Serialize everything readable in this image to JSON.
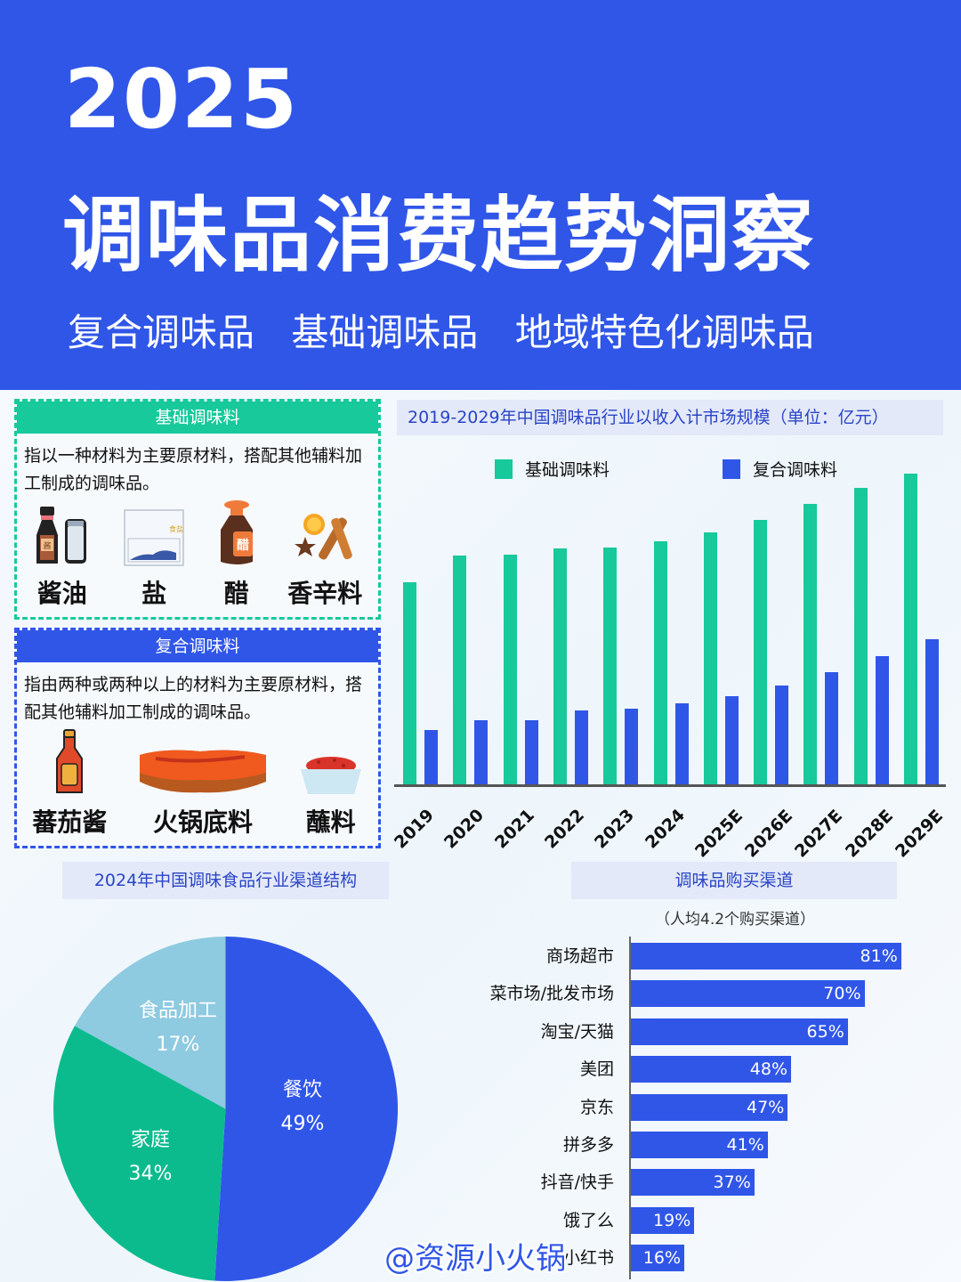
{
  "hero": {
    "year": "2025",
    "title": "调味品消费趋势洞察",
    "subtitles": [
      "复合调味品",
      "基础调味品",
      "地域特色化调味品"
    ]
  },
  "basic_card": {
    "header": "基础调味料",
    "description": "指以一种材料为主要原材料，搭配其他辅料加工制成的调味品。",
    "items": [
      {
        "label": "酱油",
        "icon": "soy-sauce-bottle-icon"
      },
      {
        "label": "盐",
        "icon": "salt-bag-icon"
      },
      {
        "label": "醋",
        "icon": "vinegar-bottle-icon"
      },
      {
        "label": "香辛料",
        "icon": "spices-icon"
      }
    ]
  },
  "compound_card": {
    "header": "复合调味料",
    "description": "指由两种或两种以上的材料为主要原材料，搭配其他辅料加工制成的调味品。",
    "items": [
      {
        "label": "蕃茄酱",
        "icon": "ketchup-bottle-icon"
      },
      {
        "label": "火锅底料",
        "icon": "hotpot-base-icon"
      },
      {
        "label": "蘸料",
        "icon": "dipping-sauce-bowl-icon"
      }
    ]
  },
  "colors": {
    "brand_blue": "#3056e8",
    "green": "#17c99b",
    "light_blue": "#8ecae0",
    "pie_green": "#0bbb8e",
    "title_bg": "#e3e9f8"
  },
  "chart_data": [
    {
      "type": "bar",
      "title": "2019-2029年中国调味品行业以收入计市场规模（单位：亿元）",
      "categories": [
        "2019",
        "2020",
        "2021",
        "2022",
        "2023",
        "2024",
        "2025E",
        "2026E",
        "2027E",
        "2028E",
        "2029E"
      ],
      "series": [
        {
          "name": "基础调味料",
          "color": "#17c99b",
          "values": [
            227,
            257,
            258,
            265,
            266,
            273,
            283,
            297,
            315,
            332,
            348
          ]
        },
        {
          "name": "复合调味料",
          "color": "#3056e8",
          "values": [
            63,
            74,
            74,
            85,
            87,
            93,
            101,
            113,
            128,
            145,
            164
          ]
        }
      ],
      "xlabel": "",
      "ylabel": "",
      "ylim": [
        0,
        360
      ],
      "value_note": "No y-axis shown; values are relative bar heights in pixels",
      "grid": false,
      "legend_position": "top"
    },
    {
      "type": "pie",
      "title": "2024年中国调味食品行业渠道结构",
      "categories": [
        "餐饮",
        "家庭",
        "食品加工"
      ],
      "values": [
        49,
        34,
        17
      ],
      "labels": [
        "49%",
        "34%",
        "17%"
      ],
      "colors": [
        "#3056e8",
        "#0bbb8e",
        "#8ecae0"
      ]
    },
    {
      "type": "bar",
      "orientation": "horizontal",
      "title": "调味品购买渠道",
      "subtitle": "（人均4.2个购买渠道）",
      "categories": [
        "商场超市",
        "菜市场/批发市场",
        "淘宝/天猫",
        "美团",
        "京东",
        "拼多多",
        "抖音/快手",
        "饿了么",
        "小红书"
      ],
      "values": [
        81,
        70,
        65,
        48,
        47,
        41,
        37,
        19,
        16
      ],
      "labels": [
        "81%",
        "70%",
        "65%",
        "48%",
        "47%",
        "41%",
        "37%",
        "19%",
        "16%"
      ],
      "xlim": [
        0,
        100
      ]
    }
  ],
  "watermark": "@资源小火锅"
}
